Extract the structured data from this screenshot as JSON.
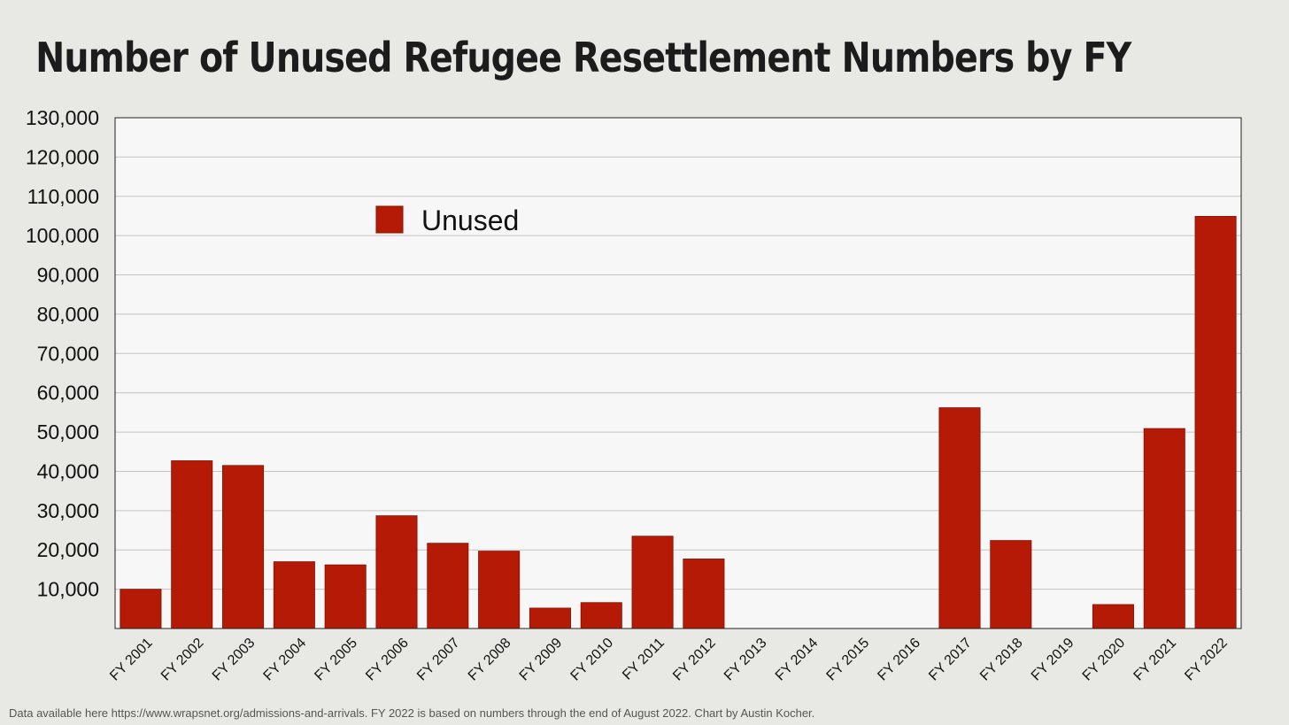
{
  "chart_data": {
    "type": "bar",
    "title": "Number of Unused Refugee Resettlement Numbers by FY",
    "categories": [
      "FY 2001",
      "FY 2002",
      "FY 2003",
      "FY 2004",
      "FY 2005",
      "FY 2006",
      "FY 2007",
      "FY 2008",
      "FY 2009",
      "FY 2010",
      "FY 2011",
      "FY 2012",
      "FY 2013",
      "FY 2014",
      "FY 2015",
      "FY 2016",
      "FY 2017",
      "FY 2018",
      "FY 2019",
      "FY 2020",
      "FY 2021",
      "FY 2022"
    ],
    "series": [
      {
        "name": "Unused",
        "values": [
          10000,
          42700,
          41500,
          17000,
          16200,
          28700,
          21700,
          19700,
          5200,
          6600,
          23500,
          17700,
          0,
          0,
          0,
          0,
          56200,
          22400,
          0,
          6100,
          50900,
          104900
        ]
      }
    ],
    "ylim": [
      0,
      130000
    ],
    "yticks": [
      10000,
      20000,
      30000,
      40000,
      50000,
      60000,
      70000,
      80000,
      90000,
      100000,
      110000,
      120000,
      130000
    ],
    "ytick_labels": [
      "10,000",
      "20,000",
      "30,000",
      "40,000",
      "50,000",
      "60,000",
      "70,000",
      "80,000",
      "90,000",
      "100,000",
      "110,000",
      "120,000",
      "130,000"
    ],
    "xlabel": "",
    "ylabel": "",
    "grid": true,
    "legend": "top-left",
    "colors": {
      "bar": "#b41a06",
      "plot_bg": "#f6f7f6",
      "page_bg": "#e8e8e5",
      "grid": "#c4c4c4"
    }
  },
  "footnote": "Data available here https://www.wrapsnet.org/admissions-and-arrivals. FY 2022 is based on numbers through the end of August 2022. Chart by Austin Kocher."
}
